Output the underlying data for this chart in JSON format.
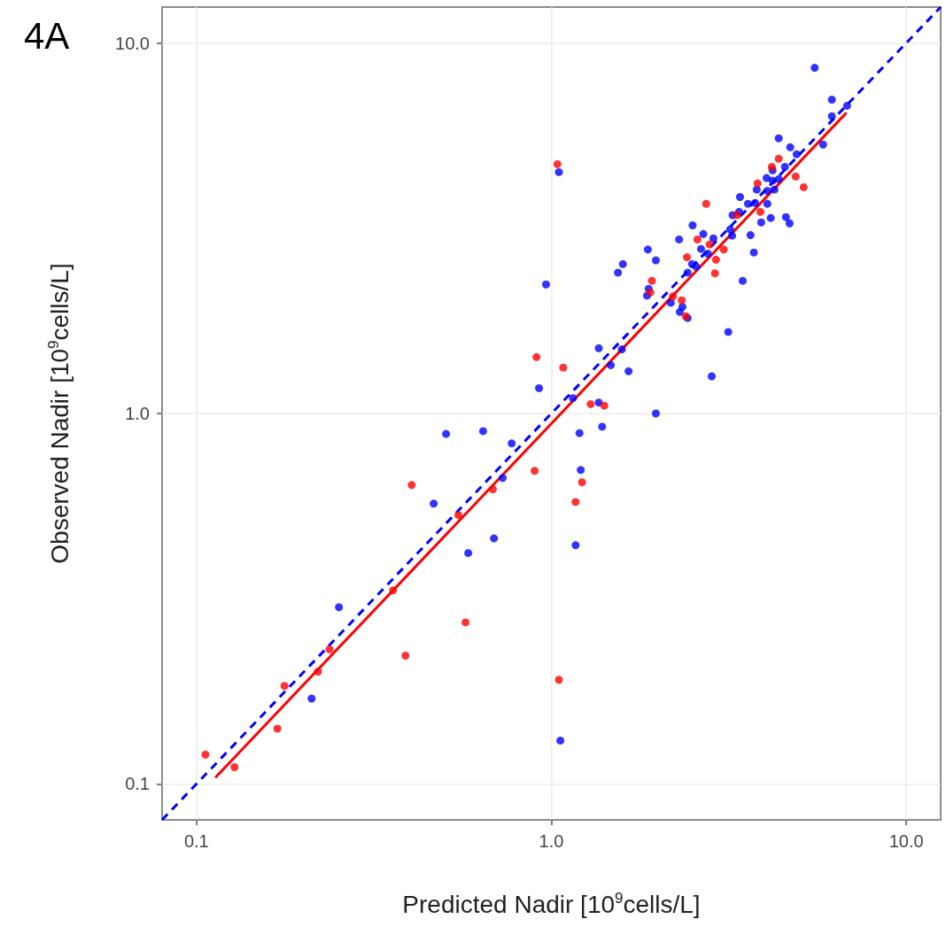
{
  "chart_data": {
    "type": "scatter",
    "title": "4A",
    "xlabel": "Predicted Nadir [10$^{9}$cells/L]",
    "ylabel": "Observed Nadir [10$^{9}$cells/L]",
    "log": "xy",
    "grid": true,
    "marker": "circle",
    "xlim": [
      0.08,
      12.5
    ],
    "ylim": [
      0.08,
      12.5
    ],
    "xticks": [
      0.1,
      {
        "value": 1,
        "label": "1.0"
      },
      {
        "value": 10,
        "label": "10.0"
      }
    ],
    "yticks": [
      0.1,
      {
        "value": 1,
        "label": "1.0"
      },
      {
        "value": 10,
        "label": "10.0"
      }
    ],
    "series": [
      {
        "color": "#ff0000",
        "x": [
          0.106,
          0.128,
          0.169,
          0.177,
          0.22,
          0.237,
          0.388,
          0.358,
          0.404,
          0.547,
          0.573,
          0.684,
          0.897,
          0.908,
          1.04,
          1.08,
          1.05,
          1.17,
          1.22,
          1.29,
          1.41,
          2.73,
          4.37,
          4.18,
          3.81,
          4.88,
          5.14,
          3.34,
          3.88,
          2.58,
          2.79,
          2.41,
          3.06,
          2.91,
          2.89,
          1.92,
          1.9,
          2.2,
          2.33,
          2.39
        ],
        "values": [
          0.12,
          0.111,
          0.141,
          0.184,
          0.201,
          0.231,
          0.222,
          0.333,
          0.641,
          0.532,
          0.273,
          0.624,
          0.7,
          1.42,
          4.71,
          1.33,
          0.191,
          0.577,
          0.652,
          1.06,
          1.05,
          3.68,
          4.87,
          4.63,
          4.18,
          4.36,
          4.08,
          3.43,
          3.5,
          2.95,
          2.86,
          2.64,
          2.77,
          2.6,
          2.39,
          2.28,
          2.12,
          2.07,
          2.02,
          1.83
        ]
      },
      {
        "color": "#0000ff",
        "x": [
          0.211,
          0.252,
          0.466,
          0.505,
          0.583,
          0.689,
          0.642,
          0.729,
          0.773,
          0.966,
          0.923,
          1.05,
          1.2,
          1.17,
          1.21,
          1.06,
          1.15,
          1.39,
          1.36,
          1.36,
          1.47,
          1.65,
          1.58,
          1.54,
          1.59,
          1.86,
          1.97,
          1.97,
          5.52,
          6.17,
          6.17,
          6.81,
          5.83,
          4.37,
          4.71,
          4.91,
          4.55,
          4.2,
          4.04,
          4.2,
          4.37,
          4.06,
          4.25,
          3.79,
          3.4,
          3.58,
          3.75,
          4.06,
          3.24,
          3.38,
          3.9,
          4.15,
          4.58,
          4.69,
          3.19,
          3.23,
          3.64,
          3.72,
          2.86,
          2.68,
          2.5,
          2.29,
          2.64,
          2.76,
          1.87,
          2.49,
          2.56,
          2.42,
          3.46,
          1.88,
          2.17,
          2.34,
          2.3,
          2.42,
          3.15,
          2.83
        ],
        "values": [
          0.17,
          0.3,
          0.571,
          0.881,
          0.42,
          0.46,
          0.896,
          0.67,
          0.83,
          2.23,
          1.17,
          4.48,
          0.885,
          0.441,
          0.704,
          0.131,
          1.1,
          0.921,
          1.07,
          1.5,
          1.35,
          1.3,
          1.49,
          2.4,
          2.53,
          2.08,
          2.59,
          1.0,
          8.57,
          7.03,
          6.34,
          6.77,
          5.32,
          5.53,
          5.23,
          5.01,
          4.63,
          4.53,
          4.32,
          4.25,
          4.29,
          3.99,
          4.02,
          4.02,
          3.84,
          3.68,
          3.7,
          3.68,
          3.43,
          3.5,
          3.28,
          3.37,
          3.39,
          3.26,
          3.14,
          3.02,
          3.03,
          2.72,
          2.97,
          3.05,
          3.22,
          2.95,
          2.78,
          2.7,
          2.77,
          2.53,
          2.49,
          2.4,
          2.28,
          2.17,
          1.99,
          1.94,
          1.88,
          1.81,
          1.66,
          1.26
        ]
      },
      {
        "type": "line",
        "color": "#0000ff",
        "line_style": "dashed",
        "marker": "none",
        "x": [
          0.08,
          12.5
        ],
        "values": [
          0.08,
          12.5
        ]
      },
      {
        "type": "line",
        "color": "#ff0000",
        "line_style": "solid",
        "marker": "none",
        "x": [
          0.113,
          6.78
        ],
        "values": [
          0.104,
          6.48
        ]
      }
    ]
  }
}
